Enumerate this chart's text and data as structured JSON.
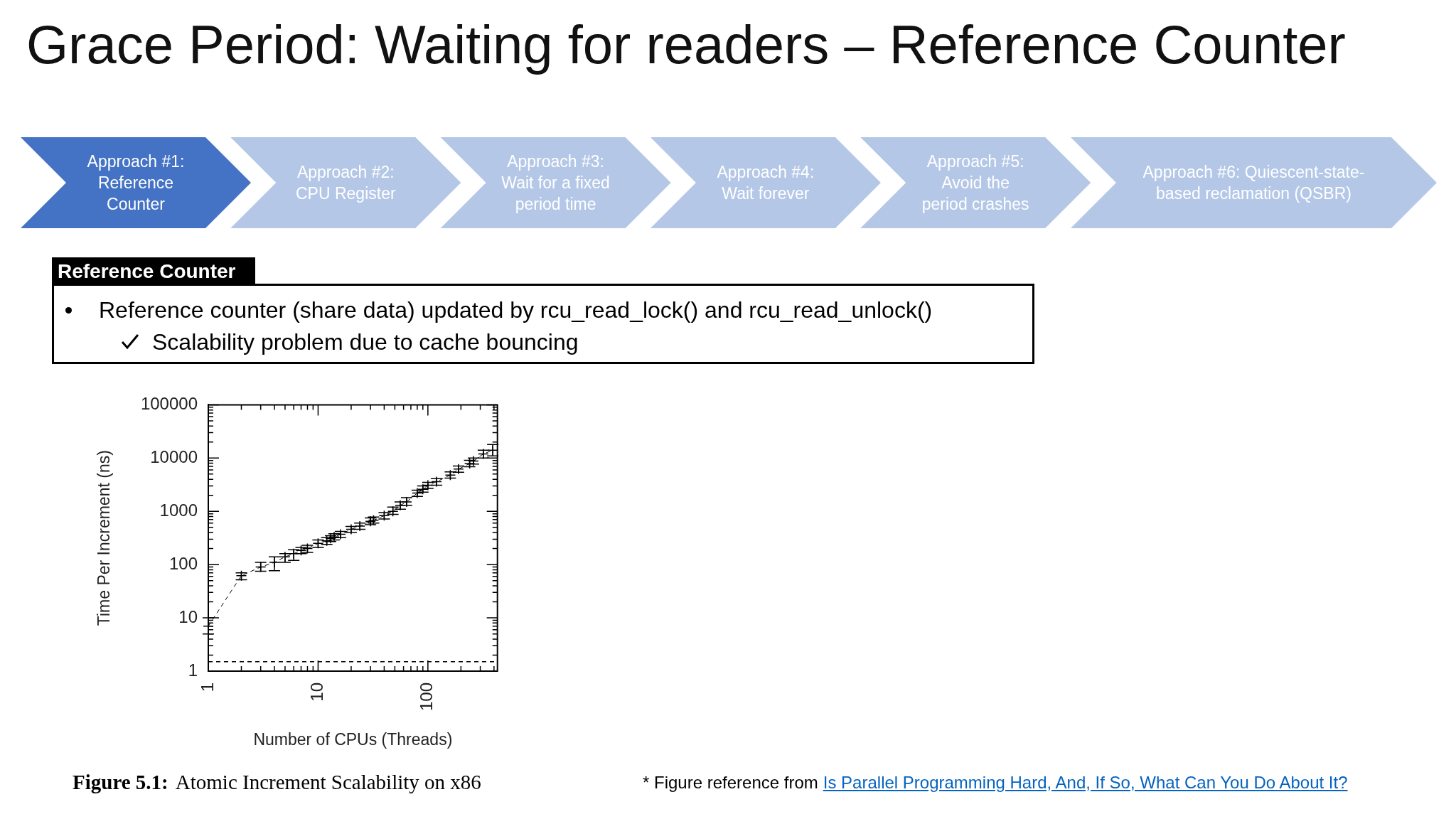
{
  "chart_data": {
    "type": "line",
    "title": "Grace Period: Waiting for readers – Reference Counter",
    "xlabel": "Number of CPUs (Threads)",
    "ylabel": "Time Per Increment (ns)",
    "annotations": [
      "Approach #1: Reference Counter",
      "Approach #2: CPU Register",
      "Approach #3: Wait for a fixed period time",
      "Approach #4: Wait forever",
      "Approach #5: Avoid the period crashes",
      "Approach #6: Quiescent-state-based reclamation (QSBR)",
      "Reference Counter",
      "Reference counter (share data) updated by rcu_read_lock() and rcu_read_unlock()",
      "Scalability problem due to cache bouncing",
      "Figure 5.1:",
      "Atomic Increment Scalability on x86",
      "* Figure reference from",
      "Is Parallel Programming Hard, And, If So, What Can You Do About It?"
    ],
    "x": [
      1,
      2,
      3,
      4,
      5,
      6,
      7,
      8,
      10,
      12,
      13,
      14,
      16,
      20,
      24,
      30,
      32,
      40,
      48,
      56,
      64,
      80,
      90,
      100,
      120,
      160,
      190,
      240,
      260,
      320,
      390
    ],
    "values": [
      7,
      62,
      90,
      110,
      140,
      160,
      185,
      200,
      250,
      280,
      310,
      330,
      370,
      460,
      530,
      650,
      680,
      830,
      1000,
      1300,
      1500,
      2200,
      2600,
      3100,
      3600,
      4800,
      6200,
      7900,
      8800,
      12000,
      14000
    ],
    "errors": [
      [
        5,
        10
      ],
      [
        52,
        70
      ],
      [
        75,
        110
      ],
      [
        77,
        140
      ],
      [
        110,
        160
      ],
      [
        120,
        190
      ],
      [
        160,
        210
      ],
      [
        170,
        230
      ],
      [
        210,
        290
      ],
      [
        240,
        320
      ],
      [
        270,
        350
      ],
      [
        290,
        380
      ],
      [
        320,
        420
      ],
      [
        400,
        520
      ],
      [
        460,
        600
      ],
      [
        560,
        750
      ],
      [
        600,
        780
      ],
      [
        720,
        950
      ],
      [
        880,
        1200
      ],
      [
        1100,
        1500
      ],
      [
        1300,
        1800
      ],
      [
        1900,
        2500
      ],
      [
        2300,
        3000
      ],
      [
        2700,
        3500
      ],
      [
        3100,
        4100
      ],
      [
        4200,
        5500
      ],
      [
        5400,
        7100
      ],
      [
        6900,
        9100
      ],
      [
        7700,
        10000
      ],
      [
        10000,
        14000
      ],
      [
        11000,
        18000
      ]
    ],
    "color": "#000000",
    "marker": "cross",
    "line_style": "dashed",
    "log": "xy",
    "xlim": [
      1,
      430
    ],
    "ylim": [
      1,
      100000
    ],
    "xticks": [
      1,
      {
        "value": 2,
        "label": null
      },
      {
        "value": 3,
        "label": null
      },
      {
        "value": 4,
        "label": null
      },
      {
        "value": 5,
        "label": null
      },
      {
        "value": 6,
        "label": null
      },
      {
        "value": 7,
        "label": null
      },
      {
        "value": 8,
        "label": null
      },
      {
        "value": 9,
        "label": null
      },
      10,
      {
        "value": 20,
        "label": null
      },
      {
        "value": 30,
        "label": null
      },
      {
        "value": 40,
        "label": null
      },
      {
        "value": 50,
        "label": null
      },
      {
        "value": 60,
        "label": null
      },
      {
        "value": 70,
        "label": null
      },
      {
        "value": 80,
        "label": null
      },
      {
        "value": 90,
        "label": null
      },
      100,
      {
        "value": 200,
        "label": null
      },
      {
        "value": 300,
        "label": null
      },
      {
        "value": 400,
        "label": null
      }
    ],
    "yticks": [
      1,
      {
        "value": 2,
        "label": null
      },
      {
        "value": 3,
        "label": null
      },
      {
        "value": 4,
        "label": null
      },
      {
        "value": 5,
        "label": null
      },
      {
        "value": 6,
        "label": null
      },
      {
        "value": 7,
        "label": null
      },
      {
        "value": 8,
        "label": null
      },
      {
        "value": 9,
        "label": null
      },
      10,
      {
        "value": 20,
        "label": null
      },
      {
        "value": 30,
        "label": null
      },
      {
        "value": 40,
        "label": null
      },
      {
        "value": 50,
        "label": null
      },
      {
        "value": 60,
        "label": null
      },
      {
        "value": 70,
        "label": null
      },
      {
        "value": 80,
        "label": null
      },
      {
        "value": 90,
        "label": null
      },
      100,
      {
        "value": 200,
        "label": null
      },
      {
        "value": 300,
        "label": null
      },
      {
        "value": 400,
        "label": null
      },
      {
        "value": 500,
        "label": null
      },
      {
        "value": 600,
        "label": null
      },
      {
        "value": 700,
        "label": null
      },
      {
        "value": 800,
        "label": null
      },
      {
        "value": 900,
        "label": null
      },
      1000,
      {
        "value": 2000,
        "label": null
      },
      {
        "value": 3000,
        "label": null
      },
      {
        "value": 4000,
        "label": null
      },
      {
        "value": 5000,
        "label": null
      },
      {
        "value": 6000,
        "label": null
      },
      {
        "value": 7000,
        "label": null
      },
      {
        "value": 8000,
        "label": null
      },
      {
        "value": 9000,
        "label": null
      },
      10000,
      {
        "value": 20000,
        "label": null
      },
      {
        "value": 30000,
        "label": null
      },
      {
        "value": 40000,
        "label": null
      },
      {
        "value": 50000,
        "label": null
      },
      {
        "value": 60000,
        "label": null
      },
      {
        "value": 70000,
        "label": null
      },
      {
        "value": 80000,
        "label": null
      },
      {
        "value": 90000,
        "label": null
      },
      100000
    ],
    "ref_lines": [
      {
        "axis": "y",
        "value": 1.5,
        "line_style": "dashed",
        "color": "#000000"
      }
    ]
  }
}
